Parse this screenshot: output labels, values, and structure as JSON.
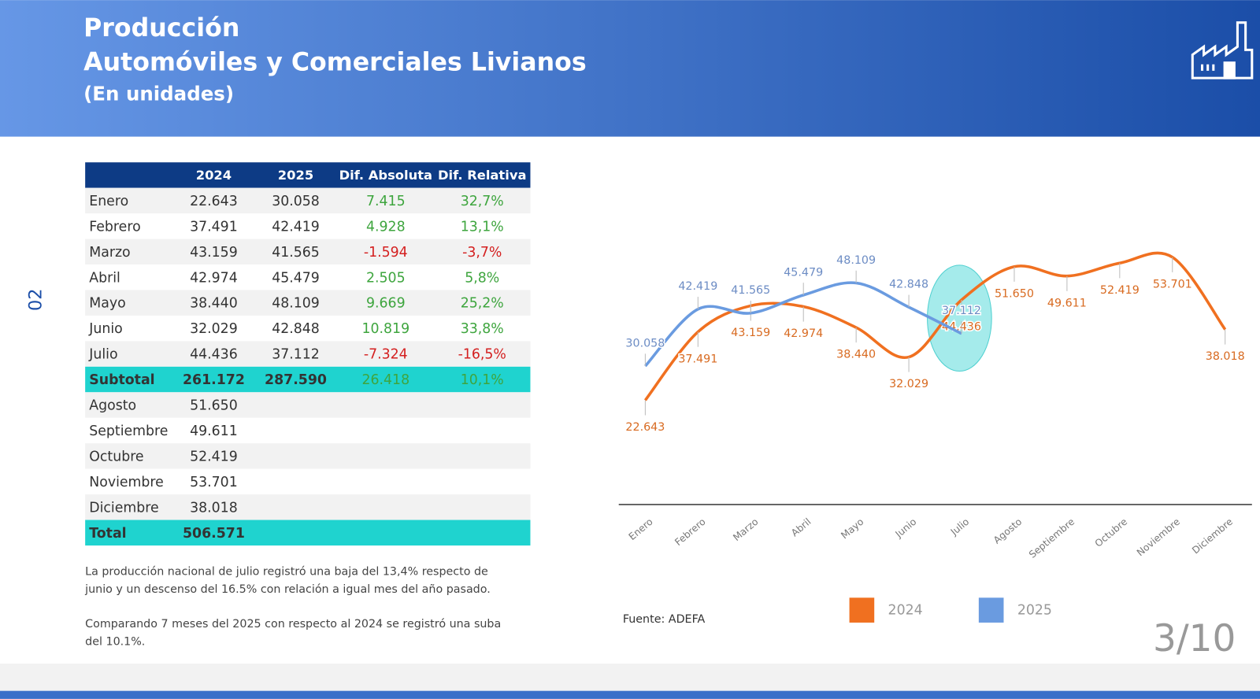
{
  "header": {
    "title": "Producción",
    "subtitle": "Automóviles y Comerciales Livianos",
    "units": "(En unidades)"
  },
  "side_label": "02",
  "table": {
    "columns": [
      "2024",
      "2025",
      "Dif. Absoluta",
      "Dif. Relativa"
    ],
    "rows": [
      [
        "Enero",
        "22.643",
        "30.058",
        "7.415",
        "32,7%"
      ],
      [
        "Febrero",
        "37.491",
        "42.419",
        "4.928",
        "13,1%"
      ],
      [
        "Marzo",
        "43.159",
        "41.565",
        "-1.594",
        "-3,7%"
      ],
      [
        "Abril",
        "42.974",
        "45.479",
        "2.505",
        "5,8%"
      ],
      [
        "Mayo",
        "38.440",
        "48.109",
        "9.669",
        "25,2%"
      ],
      [
        "Junio",
        "32.029",
        "42.848",
        "10.819",
        "33,8%"
      ],
      [
        "Julio",
        "44.436",
        "37.112",
        "-7.324",
        "-16,5%"
      ],
      [
        "Subtotal",
        "261.172",
        "287.590",
        "26.418",
        "10,1%"
      ],
      [
        "Agosto",
        "51.650"
      ],
      [
        "Septiembre",
        "49.611"
      ],
      [
        "Octubre",
        "52.419"
      ],
      [
        "Noviembre",
        "53.701"
      ],
      [
        "Diciembre",
        "38.018"
      ],
      [
        "Total",
        "506.571"
      ]
    ]
  },
  "notes": [
    [
      "La producción nacional de julio registró una baja del 13,4% respecto de",
      "junio y un descenso del 16.5% con relación a igual mes del año pasado."
    ],
    [
      "Comparando 7 meses del 2025 con respecto al 2024 se registró una suba",
      "del 10.1%."
    ]
  ],
  "source": "Fuente: ADEFA",
  "page": "3/10",
  "chart_data": {
    "type": "line",
    "categories": [
      "Enero",
      "Febrero",
      "Marzo",
      "Abril",
      "Mayo",
      "Junio",
      "Julio",
      "Agosto",
      "Septiembre",
      "Octubre",
      "Noviembre",
      "Diciembre"
    ],
    "ylim": [
      0,
      60000
    ],
    "series": [
      {
        "name": "2024",
        "color": "#f07020",
        "values": [
          22643,
          37491,
          43159,
          42974,
          38440,
          32029,
          44436,
          51650,
          49611,
          52419,
          53701,
          38018
        ],
        "value_labels": [
          "22.643",
          "37.491",
          "43.159",
          "42.974",
          "38.440",
          "32.029",
          "44.436",
          "51.650",
          "49.611",
          "52.419",
          "53.701",
          "38.018"
        ]
      },
      {
        "name": "2025",
        "color": "#6a9be0",
        "values": [
          30058,
          42419,
          41565,
          45479,
          48109,
          42848,
          37112,
          null,
          null,
          null,
          null,
          null
        ],
        "value_labels": [
          "30.058",
          "42.419",
          "41.565",
          "45.479",
          "48.109",
          "42.848",
          "37.112",
          null,
          null,
          null,
          null,
          null
        ]
      }
    ]
  }
}
